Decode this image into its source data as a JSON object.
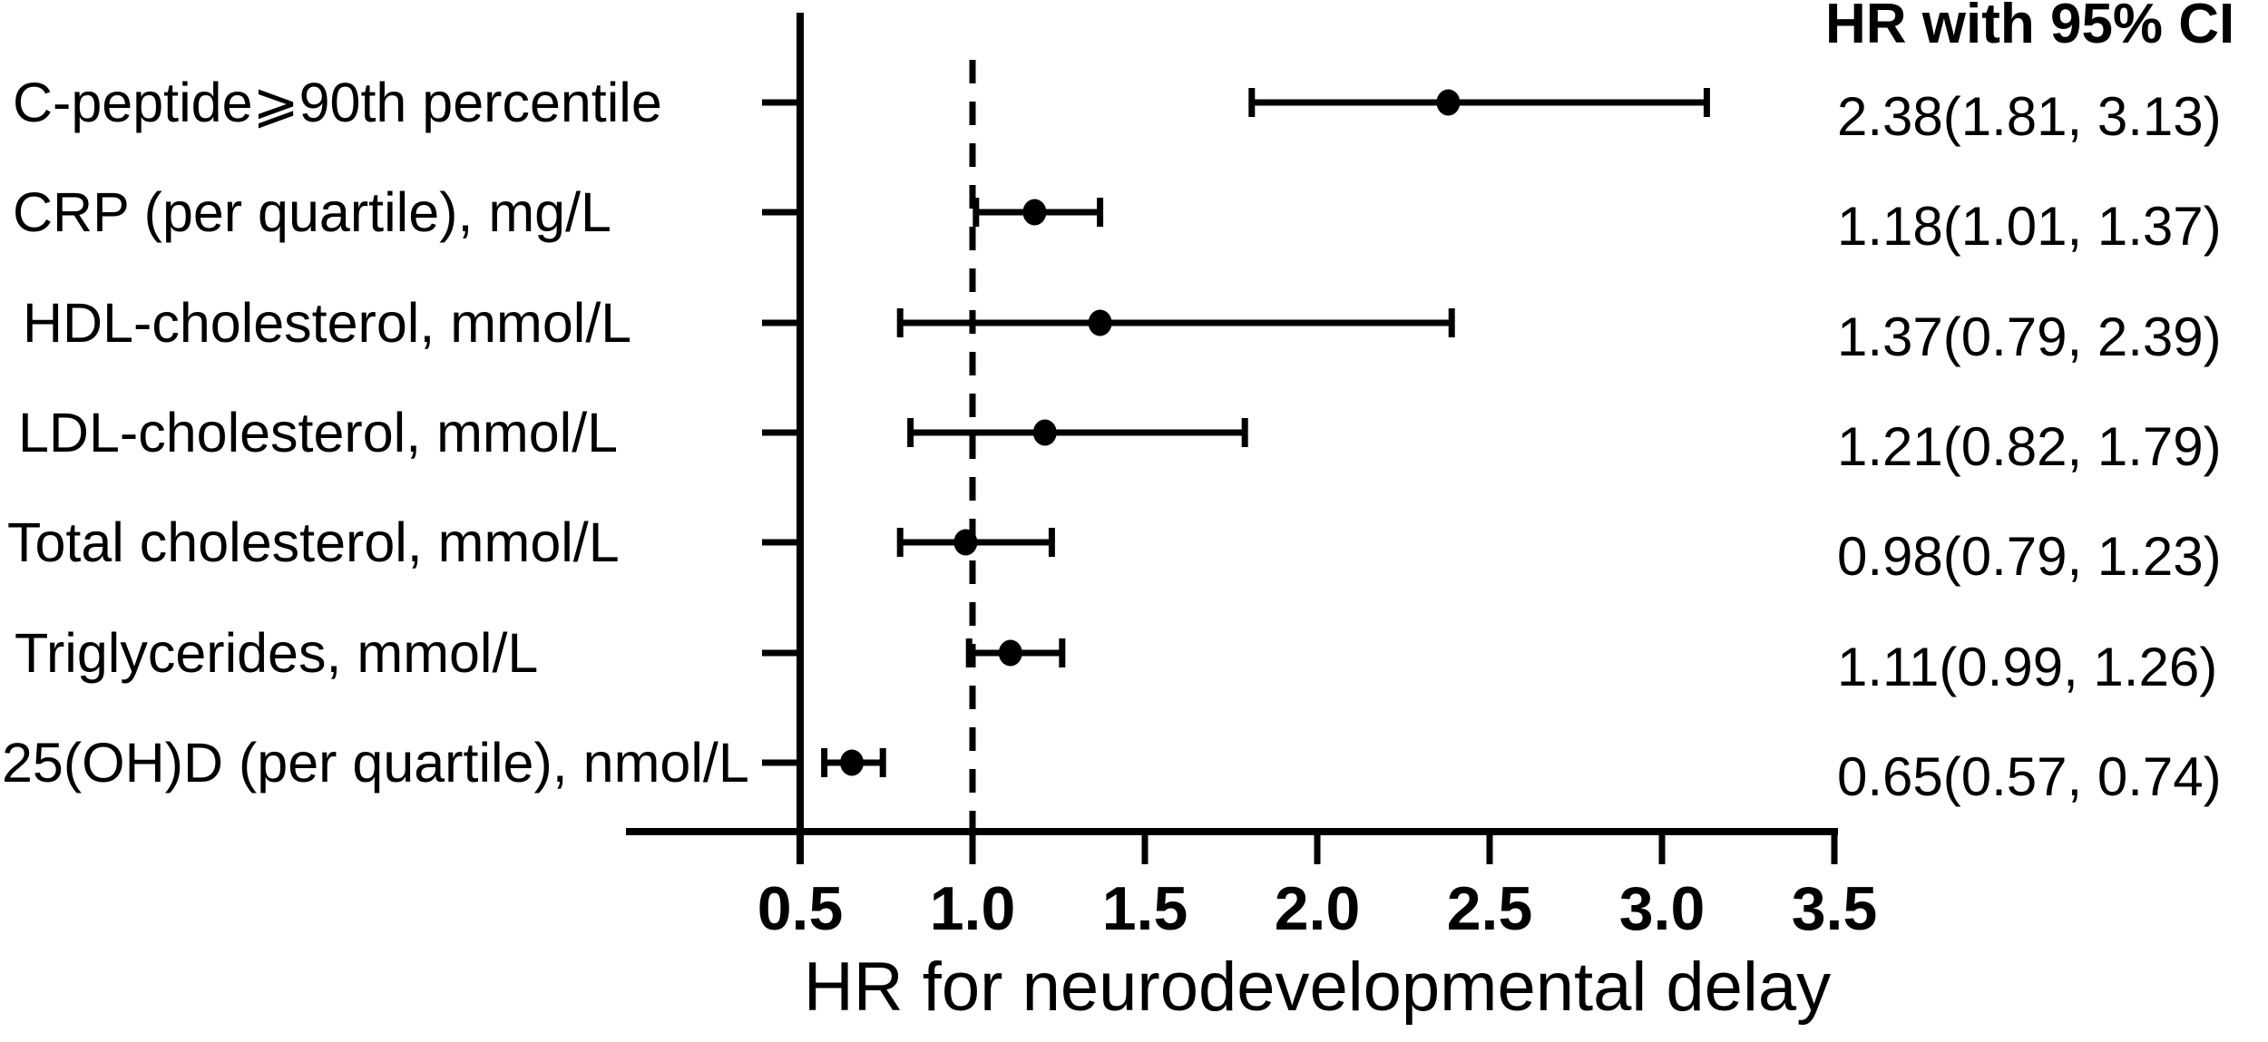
{
  "figure": {
    "right_column_header": "HR with 95% CI"
  },
  "chart_data": {
    "type": "scatter",
    "subtype": "forest-plot-with-error-bars",
    "title": "",
    "xlabel": "HR for neurodevelopmental delay",
    "ylabel": "",
    "xlim": [
      0.5,
      3.5
    ],
    "reference_line_x": 1.0,
    "x_ticks": [
      0.5,
      1.0,
      1.5,
      2.0,
      2.5,
      3.0,
      3.5
    ],
    "x_tick_labels": [
      "0.5",
      "1.0",
      "1.5",
      "2.0",
      "2.5",
      "3.0",
      "3.5"
    ],
    "grid": "off",
    "legend": "none",
    "marker_color": "#000000",
    "axis_color": "#000000",
    "background_color": "#ffffff",
    "rows": [
      {
        "label": "C-peptide⩾90th percentile",
        "hr": 2.38,
        "ci_low": 1.81,
        "ci_high": 3.13,
        "ci_text": "2.38(1.81, 3.13)"
      },
      {
        "label": "CRP (per quartile), mg/L",
        "hr": 1.18,
        "ci_low": 1.01,
        "ci_high": 1.37,
        "ci_text": "1.18(1.01, 1.37)"
      },
      {
        "label": "HDL-cholesterol, mmol/L",
        "hr": 1.37,
        "ci_low": 0.79,
        "ci_high": 2.39,
        "ci_text": "1.37(0.79, 2.39)"
      },
      {
        "label": "LDL-cholesterol, mmol/L",
        "hr": 1.21,
        "ci_low": 0.82,
        "ci_high": 1.79,
        "ci_text": "1.21(0.82, 1.79)"
      },
      {
        "label": "Total cholesterol, mmol/L",
        "hr": 0.98,
        "ci_low": 0.79,
        "ci_high": 1.23,
        "ci_text": "0.98(0.79, 1.23)"
      },
      {
        "label": "Triglycerides, mmol/L",
        "hr": 1.11,
        "ci_low": 0.99,
        "ci_high": 1.26,
        "ci_text": "1.11(0.99, 1.26)"
      },
      {
        "label": "25(OH)D (per quartile), nmol/L",
        "hr": 0.65,
        "ci_low": 0.57,
        "ci_high": 0.74,
        "ci_text": "0.65(0.57, 0.74)"
      }
    ]
  }
}
